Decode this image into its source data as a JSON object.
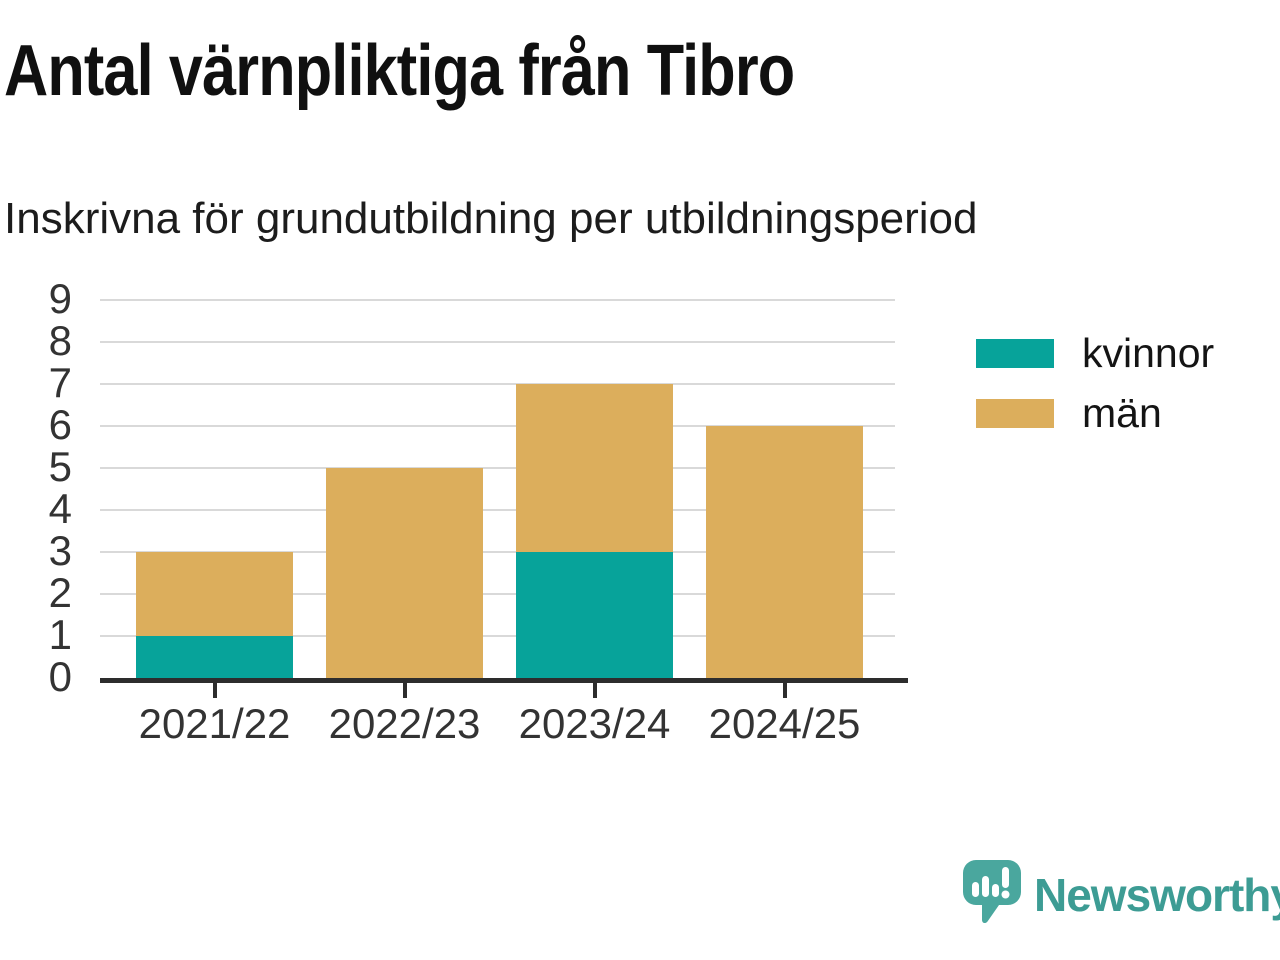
{
  "page": {
    "title": "Antal värnpliktiga från Tibro",
    "subtitle": "Inskrivna för grundutbildning per utbildningsperiod"
  },
  "chart_data": {
    "type": "bar",
    "stacked": true,
    "title": "Antal värnpliktiga från Tibro",
    "subtitle": "Inskrivna för grundutbildning per utbildningsperiod",
    "categories": [
      "2021/22",
      "2022/23",
      "2023/24",
      "2024/25"
    ],
    "series": [
      {
        "name": "kvinnor",
        "color": "#07a39a",
        "values": [
          1,
          0,
          3,
          0
        ]
      },
      {
        "name": "män",
        "color": "#dcae5c",
        "values": [
          2,
          5,
          4,
          6
        ]
      }
    ],
    "totals": [
      3,
      5,
      7,
      6
    ],
    "xlabel": "",
    "ylabel": "",
    "ylim": [
      0,
      9
    ],
    "yticks": [
      0,
      1,
      2,
      3,
      4,
      5,
      6,
      7,
      8,
      9
    ],
    "grid": true,
    "legend_position": "right"
  },
  "colors": {
    "kvinnor": "#07a39a",
    "man": "#dcae5c",
    "axis": "#2d2d2d",
    "gridline": "#d9d9d9",
    "tick_text": "#333333"
  },
  "branding": {
    "logo_text": "Newsworthy",
    "logo_text_color": "#3d9c94",
    "logo_icon_color": "#4aa79e",
    "logo_icon": "chart-speech-bubble-icon"
  }
}
